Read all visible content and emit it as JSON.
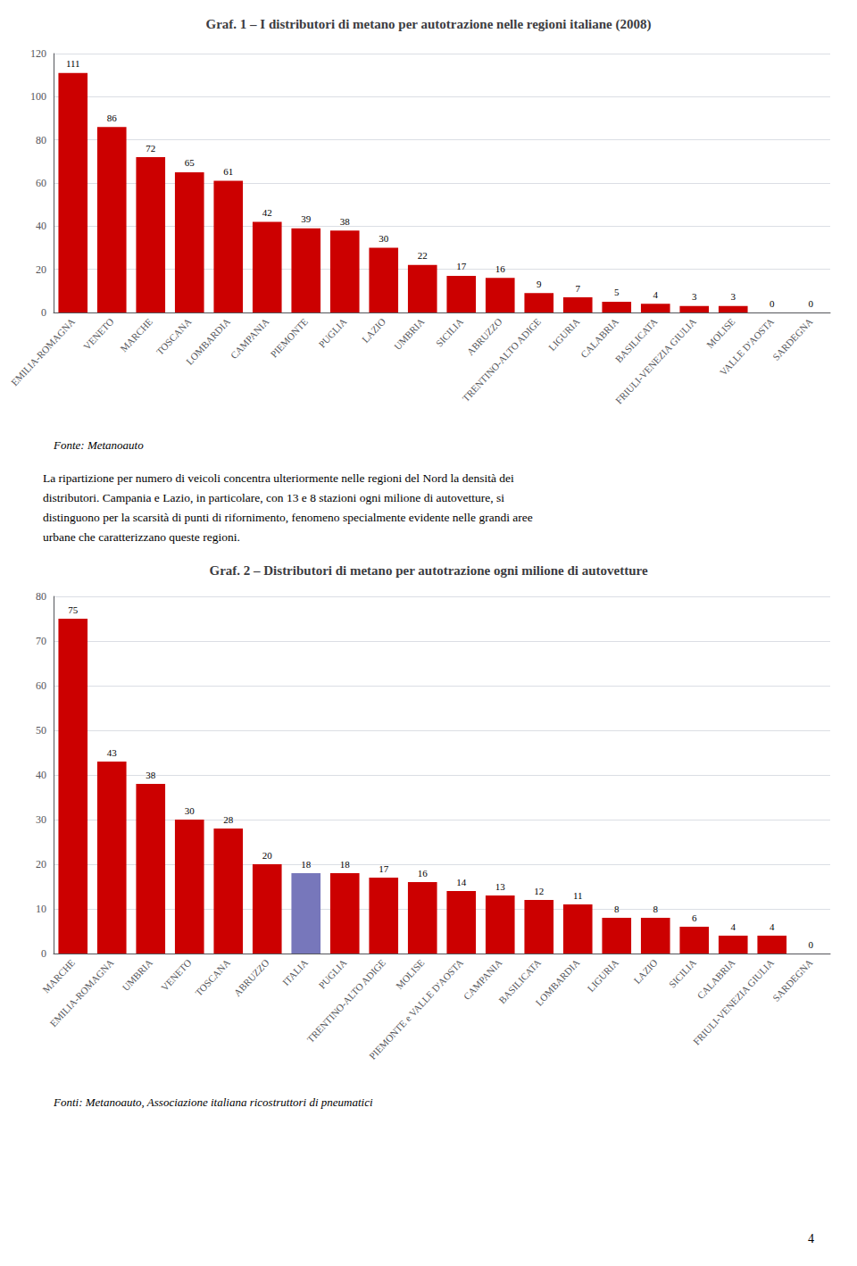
{
  "chart_data": [
    {
      "type": "bar",
      "title": "Graf. 1 – I distributori di metano per autotrazione nelle regioni italiane (2008)",
      "categories": [
        "EMILIA-ROMAGNA",
        "VENETO",
        "MARCHE",
        "TOSCANA",
        "LOMBARDIA",
        "CAMPANIA",
        "PIEMONTE",
        "PUGLIA",
        "LAZIO",
        "UMBRIA",
        "SICILIA",
        "ABRUZZO",
        "TRENTINO-ALTO ADIGE",
        "LIGURIA",
        "CALABRIA",
        "BASILICATA",
        "FRIULI-VENEZIA GIULIA",
        "MOLISE",
        "VALLE D'AOSTA",
        "SARDEGNA"
      ],
      "values": [
        111,
        86,
        72,
        65,
        61,
        42,
        39,
        38,
        30,
        22,
        17,
        16,
        9,
        7,
        5,
        4,
        3,
        3,
        0,
        0
      ],
      "color": "#cc0000",
      "ylim": [
        0,
        120
      ],
      "yticks": [
        0,
        20,
        40,
        60,
        80,
        100,
        120
      ],
      "grid": true,
      "data_labels": true,
      "annotations": [
        "Fonte: Metanoauto",
        "La ripartizione per numero di veicoli concentra ulteriormente nelle regioni del Nord la densità dei",
        "distributori. Campania e Lazio, in particolare, con 13 e 8 stazioni ogni milione di autovetture, si",
        "distinguono per la scarsità di punti di rifornimento, fenomeno specialmente evidente nelle grandi aree",
        "urbane che caratterizzano queste regioni."
      ]
    },
    {
      "type": "bar",
      "title": "Graf. 2 – Distributori di metano per autotrazione ogni milione di autovetture",
      "categories": [
        "MARCHE",
        "EMILIA-ROMAGNA",
        "UMBRIA",
        "VENETO",
        "TOSCANA",
        "ABRUZZO",
        "ITALIA",
        "PUGLIA",
        "TRENTINO-ALTO ADIGE",
        "MOLISE",
        "PIEMONTE e VALLE D'AOSTA",
        "CAMPANIA",
        "BASILICATA",
        "LOMBARDIA",
        "LIGURIA",
        "LAZIO",
        "SICILIA",
        "CALABRIA",
        "FRIULI-VENEZIA GIULIA",
        "SARDEGNA"
      ],
      "values": [
        75,
        43,
        38,
        30,
        28,
        20,
        18,
        18,
        17,
        16,
        14,
        13,
        12,
        11,
        8,
        8,
        6,
        4,
        4,
        0
      ],
      "colors": [
        "#cc0000",
        "#cc0000",
        "#cc0000",
        "#cc0000",
        "#cc0000",
        "#cc0000",
        "#7777bb",
        "#cc0000",
        "#cc0000",
        "#cc0000",
        "#cc0000",
        "#cc0000",
        "#cc0000",
        "#cc0000",
        "#cc0000",
        "#cc0000",
        "#cc0000",
        "#cc0000",
        "#cc0000",
        "#cc0000"
      ],
      "ylim": [
        0,
        80
      ],
      "yticks": [
        0,
        10,
        20,
        30,
        40,
        50,
        60,
        70,
        80
      ],
      "grid": true,
      "data_labels": true,
      "annotations": [
        "Fonti: Metanoauto, Associazione italiana ricostruttori di pneumatici",
        "4"
      ]
    }
  ]
}
